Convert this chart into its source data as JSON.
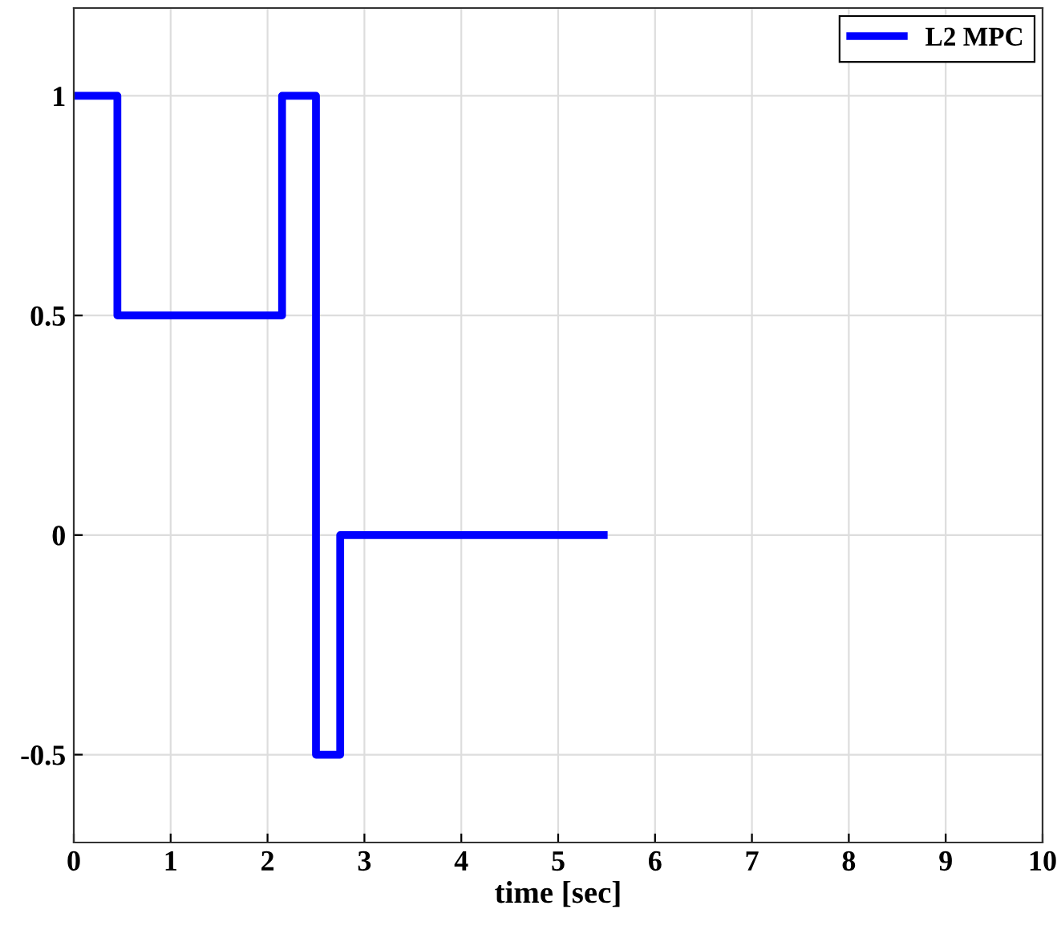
{
  "chart_data": {
    "type": "step",
    "xlabel": "time [sec]",
    "x": [
      0,
      0.45,
      2.15,
      2.5,
      2.75,
      5.47
    ],
    "series": [
      {
        "name": "L2 MPC",
        "color": "#0000ff",
        "values": [
          1,
          0.5,
          1,
          -0.5,
          0,
          0
        ]
      }
    ],
    "xlim": [
      0,
      10
    ],
    "xticks": [
      0,
      1,
      2,
      3,
      4,
      5,
      6,
      7,
      8,
      9,
      10
    ],
    "ylim": [
      -0.7,
      1.2
    ],
    "yticks": [
      -0.5,
      0,
      0.5,
      1
    ],
    "grid": true,
    "legend": "top right",
    "line_style": "solid"
  }
}
